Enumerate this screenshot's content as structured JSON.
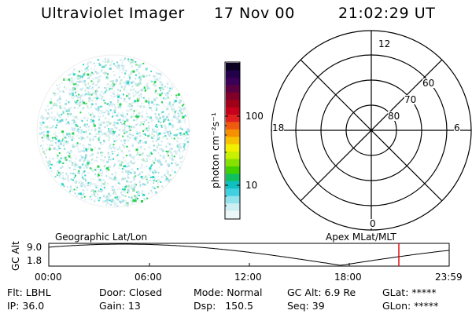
{
  "header": {
    "title": "Ultraviolet Imager",
    "date": "17 Nov 00",
    "time": "21:02:29 UT"
  },
  "colorbar": {
    "unit_label": "photon cm⁻²s⁻¹",
    "tick_labels": [
      "100",
      "10"
    ],
    "colors": [
      "#0b0020",
      "#23004a",
      "#3a0058",
      "#5a0040",
      "#80002a",
      "#a00018",
      "#c4001a",
      "#e02020",
      "#f05a10",
      "#f59000",
      "#f7c000",
      "#f2f000",
      "#c8f000",
      "#86e000",
      "#40d000",
      "#10c060",
      "#10c0c0",
      "#40d0e0",
      "#90e2ec",
      "#cdeff3",
      "#edf7f9"
    ],
    "accent_cyan": "#2ad6c8",
    "accent_green": "#24d24a"
  },
  "polar_plot": {
    "clock_labels": [
      "12",
      "18",
      "6",
      "0"
    ],
    "lat_labels": [
      "60",
      "70",
      "80"
    ]
  },
  "timeline": {
    "left_title": "Geographic Lat/Lon",
    "right_title": "Apex MLat/MLT",
    "y_axis_label": "GC Alt",
    "y_ticks": [
      "9.0",
      "1.8"
    ],
    "x_ticks": [
      "00:00",
      "06:00",
      "12:00",
      "18:00",
      "23:59"
    ],
    "marker_color": "#e00000"
  },
  "info": {
    "flt": "Flt: LBHL",
    "ip": "IP: 36.0",
    "door": "Door: Closed",
    "gain": "Gain: 13",
    "mode": "Mode: Normal",
    "dsp": "Dsp:   150.5",
    "gcalt": "GC Alt: 6.9 Re",
    "seq": "Seq: 39",
    "glat": "GLat: *****",
    "glon": "GLon: *****"
  }
}
